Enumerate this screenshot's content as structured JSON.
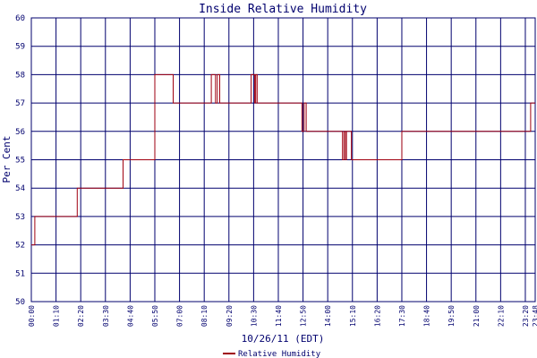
{
  "chart_data": {
    "type": "line",
    "title": "Inside Relative Humidity",
    "xlabel": "10/26/11 (EDT)",
    "ylabel": "Per Cent",
    "ylim": [
      50,
      60
    ],
    "yticks": [
      "50",
      "51",
      "52",
      "53",
      "54",
      "55",
      "56",
      "57",
      "58",
      "59",
      "60"
    ],
    "xticks": [
      "00:00",
      "01:10",
      "02:20",
      "03:30",
      "04:40",
      "05:50",
      "07:00",
      "08:10",
      "09:20",
      "10:30",
      "11:40",
      "12:50",
      "14:00",
      "15:10",
      "16:20",
      "17:30",
      "18:40",
      "19:50",
      "21:00",
      "22:10",
      "23:20",
      "23:48"
    ],
    "xrange_minutes": [
      0,
      1428
    ],
    "grid": true,
    "legend_position": "bottom-center",
    "colors": {
      "series": "#a00010",
      "grid": "#00006e",
      "background": "#ffffff"
    },
    "series": [
      {
        "name": "Relative Humidity",
        "step_points_minutes": [
          [
            0,
            52
          ],
          [
            10,
            53
          ],
          [
            130,
            54
          ],
          [
            260,
            55
          ],
          [
            350,
            58
          ],
          [
            402,
            57
          ],
          [
            510,
            58
          ],
          [
            522,
            57
          ],
          [
            527,
            58
          ],
          [
            534,
            57
          ],
          [
            623,
            58
          ],
          [
            633,
            57
          ],
          [
            636,
            58
          ],
          [
            640,
            57
          ],
          [
            767,
            56
          ],
          [
            773,
            57
          ],
          [
            779,
            56
          ],
          [
            882,
            55
          ],
          [
            886,
            56
          ],
          [
            890,
            55
          ],
          [
            893,
            56
          ],
          [
            907,
            55
          ],
          [
            1050,
            56
          ],
          [
            1415,
            57
          ],
          [
            1428,
            57
          ]
        ]
      }
    ]
  }
}
